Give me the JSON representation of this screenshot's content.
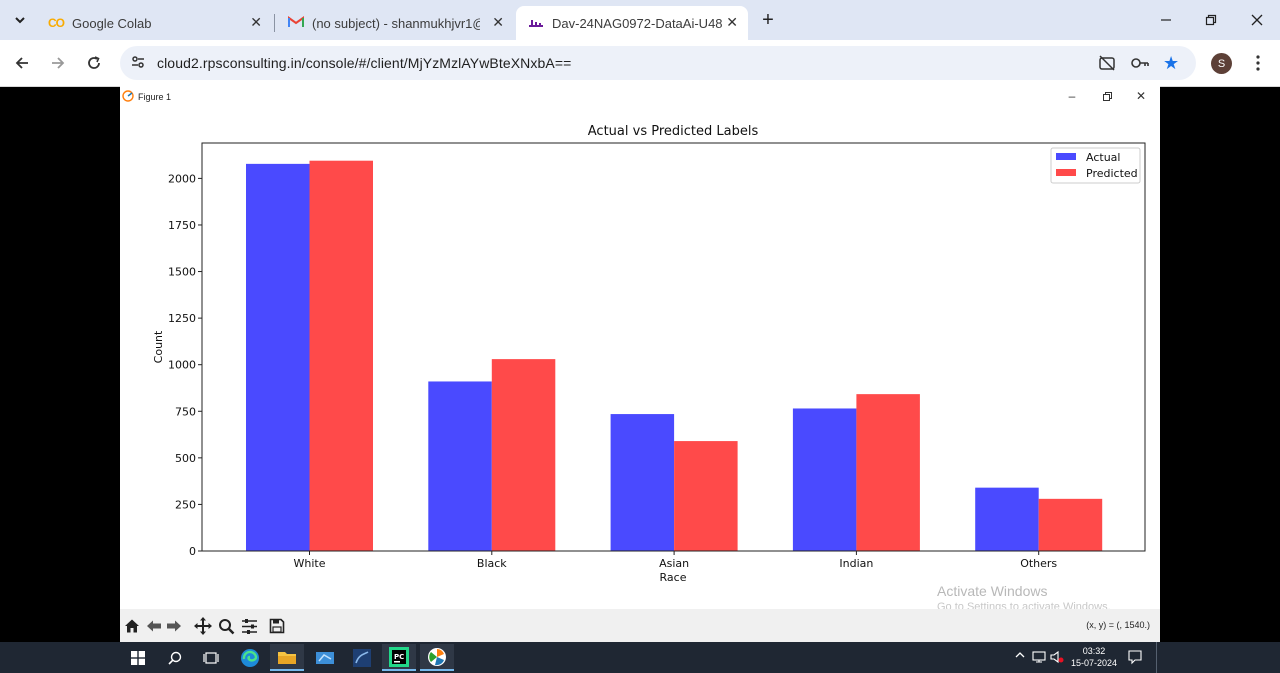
{
  "browser": {
    "tabs": [
      {
        "title": "Google Colab",
        "icon": "colab-icon",
        "active": false
      },
      {
        "title": "(no subject) - shanmukhjvr1@g",
        "icon": "gmail-icon",
        "active": false
      },
      {
        "title": "Dav-24NAG0972-DataAi-U48",
        "icon": "remote-desktop-icon",
        "active": true
      }
    ],
    "new_tab_label": "+",
    "url": "cloud2.rpsconsulting.in/console/#/client/MjYzMzlAYwBteXNxbA==",
    "profile_initial": "S"
  },
  "figure_window": {
    "title": "Figure 1",
    "coords_readout": "(x, y) = (, 1540.)"
  },
  "watermark": {
    "line1": "Activate Windows",
    "line2": "Go to Settings to activate Windows."
  },
  "taskbar": {
    "time": "03:32",
    "date": "15-07-2024"
  },
  "colors": {
    "actual": "#4a4aff",
    "predicted": "#ff4a4a"
  },
  "chart_data": {
    "type": "bar",
    "title": "Actual vs Predicted Labels",
    "xlabel": "Race",
    "ylabel": "Count",
    "categories": [
      "White",
      "Black",
      "Asian",
      "Indian",
      "Others"
    ],
    "series": [
      {
        "name": "Actual",
        "values": [
          2078,
          910,
          735,
          765,
          340
        ]
      },
      {
        "name": "Predicted",
        "values": [
          2095,
          1030,
          590,
          842,
          280
        ]
      }
    ],
    "ylim": [
      0,
      2190
    ],
    "yticks": [
      0,
      250,
      500,
      750,
      1000,
      1250,
      1500,
      1750,
      2000
    ],
    "legend": "top-right",
    "grid": false
  }
}
